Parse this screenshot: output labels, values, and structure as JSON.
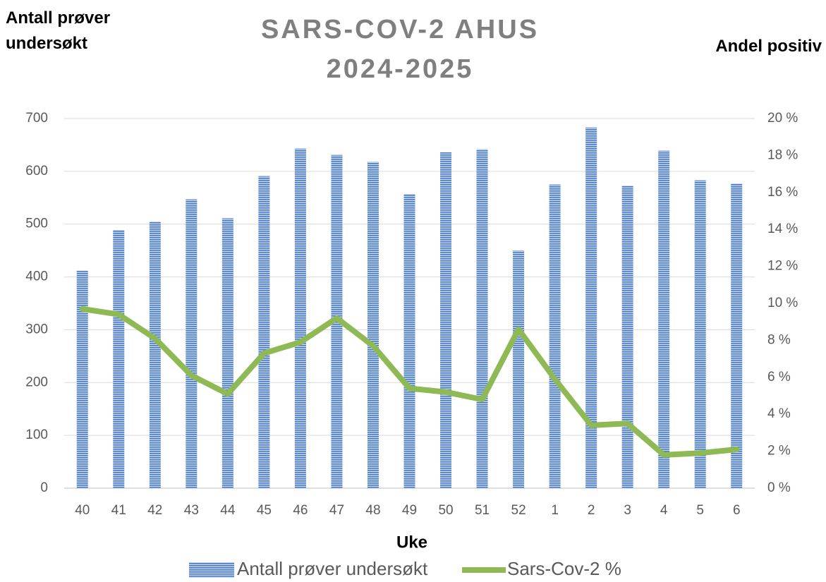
{
  "chart_data": {
    "type": "bar_line",
    "title": "SARS-COV-2 AHUS 2024-2025",
    "y_label": "Antall prøver undersøkt",
    "y2_label": "Andel positiv",
    "x_label": "Uke",
    "categories": [
      "40",
      "41",
      "42",
      "43",
      "44",
      "45",
      "46",
      "47",
      "48",
      "49",
      "50",
      "51",
      "52",
      "1",
      "2",
      "3",
      "4",
      "5",
      "6"
    ],
    "series": [
      {
        "name": "Antall prøver undersøkt",
        "type": "bar",
        "color": "#4a7cc4",
        "values": [
          412,
          489,
          505,
          547,
          511,
          591,
          643,
          631,
          618,
          557,
          636,
          642,
          450,
          575,
          683,
          573,
          639,
          583,
          577
        ]
      },
      {
        "name": "Sars-Cov-2 %",
        "type": "line",
        "axis": "y2",
        "color": "#8fb954",
        "values": [
          9.7,
          9.4,
          8.1,
          6.1,
          5.1,
          7.3,
          7.9,
          9.2,
          7.7,
          5.4,
          5.2,
          4.8,
          8.6,
          5.9,
          3.4,
          3.5,
          1.8,
          1.9,
          2.1
        ]
      }
    ],
    "ylim": [
      0,
      700
    ],
    "yticks": [
      0,
      100,
      200,
      300,
      400,
      500,
      600,
      700
    ],
    "y2lim": [
      0,
      20
    ],
    "y2ticks": [
      {
        "value": 0,
        "label": "0 %"
      },
      {
        "value": 2,
        "label": "2 %"
      },
      {
        "value": 4,
        "label": "4 %"
      },
      {
        "value": 6,
        "label": "6 %"
      },
      {
        "value": 8,
        "label": "8 %"
      },
      {
        "value": 10,
        "label": "10 %"
      },
      {
        "value": 12,
        "label": "12 %"
      },
      {
        "value": 14,
        "label": "14 %"
      },
      {
        "value": 16,
        "label": "16 %"
      },
      {
        "value": 18,
        "label": "18 %"
      },
      {
        "value": 20,
        "label": "20 %"
      }
    ],
    "grid": true,
    "legend": "bottom"
  }
}
